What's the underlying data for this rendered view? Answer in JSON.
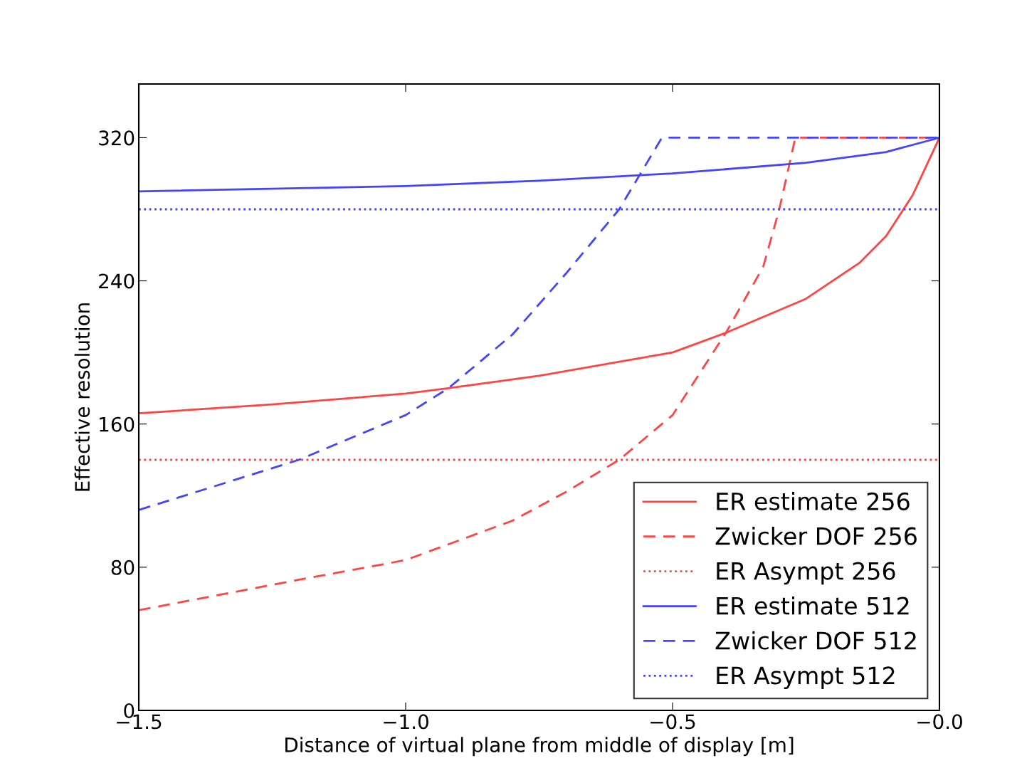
{
  "chart_data": {
    "type": "line",
    "xlabel": "Distance of virtual plane from middle of display [m]",
    "ylabel": "Effective resolution",
    "xlim": [
      -1.5,
      0
    ],
    "xticks": [
      {
        "value": -1.5,
        "label": "−1.5"
      },
      {
        "value": -1.0,
        "label": "−1.0"
      },
      {
        "value": -0.5,
        "label": "−0.5"
      },
      {
        "value": 0,
        "label": "−0.0"
      }
    ],
    "ylim": [
      0,
      350
    ],
    "yticks": [
      0,
      80,
      160,
      240,
      320
    ],
    "grid": false,
    "legend": "bottom right",
    "marker": "none",
    "series": [
      {
        "name": "ER estimate 256",
        "color": "#ff4444",
        "line_style": "solid",
        "x": [
          -1.5,
          -1.25,
          -1.0,
          -0.92,
          -0.75,
          -0.5,
          -0.4,
          -0.25,
          -0.15,
          -0.1,
          -0.05,
          0
        ],
        "values": [
          166,
          171,
          177,
          180,
          187,
          200,
          211,
          230,
          250,
          265,
          288,
          320
        ]
      },
      {
        "name": "Zwicker DOF 256",
        "color": "#ff4444",
        "line_style": "dashed",
        "x": [
          -1.5,
          -1.2,
          -1.0,
          -0.8,
          -0.7,
          -0.6,
          -0.5,
          -0.4,
          -0.33,
          -0.3,
          -0.27,
          0
        ],
        "values": [
          56,
          73,
          84,
          106,
          122,
          140,
          165,
          211,
          248,
          280,
          320,
          320
        ]
      },
      {
        "name": "ER Asympt 256",
        "color": "#ff4444",
        "line_style": "dotted",
        "x": [
          -1.5,
          0
        ],
        "values": [
          140,
          140
        ]
      },
      {
        "name": "ER estimate 512",
        "color": "#4444ff",
        "line_style": "solid",
        "x": [
          -1.5,
          -1.0,
          -0.75,
          -0.5,
          -0.25,
          -0.1,
          0
        ],
        "values": [
          290,
          293,
          296,
          300,
          306,
          312,
          320
        ]
      },
      {
        "name": "Zwicker DOF 512",
        "color": "#4444ff",
        "line_style": "dashed",
        "x": [
          -1.5,
          -1.2,
          -1.0,
          -0.92,
          -0.8,
          -0.7,
          -0.6,
          -0.52,
          0
        ],
        "values": [
          112,
          140,
          165,
          180,
          210,
          244,
          280,
          320,
          320
        ]
      },
      {
        "name": "ER Asympt 512",
        "color": "#4444ff",
        "line_style": "dotted",
        "x": [
          -1.5,
          0
        ],
        "values": [
          280,
          280
        ]
      }
    ]
  }
}
